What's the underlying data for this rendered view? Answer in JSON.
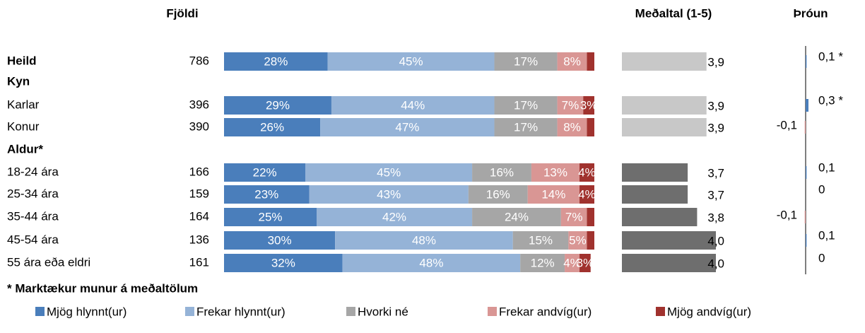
{
  "chart_data": {
    "type": "bar",
    "orientation": "horizontal",
    "stacked": true,
    "count_header": "Fjöldi",
    "categories": [
      "Heild",
      "Kyn",
      "Karlar",
      "Konur",
      "Aldur*",
      "18-24 ára",
      "25-34 ára",
      "35-44 ára",
      "45-54 ára",
      "55 ára eða eldri"
    ],
    "bold_categories": [
      true,
      true,
      false,
      false,
      true,
      false,
      false,
      false,
      false,
      false
    ],
    "counts": [
      786,
      null,
      396,
      390,
      null,
      166,
      159,
      164,
      136,
      161
    ],
    "xlim": [
      0,
      100
    ],
    "series": [
      {
        "name": "Mjög hlynnt(ur)",
        "color": "#4a7ebb",
        "values": [
          28,
          null,
          29,
          26,
          null,
          22,
          23,
          25,
          30,
          32
        ],
        "value_labels": [
          "28%",
          null,
          "29%",
          "26%",
          null,
          "22%",
          "23%",
          "25%",
          "30%",
          "32%"
        ]
      },
      {
        "name": "Frekar hlynnt(ur)",
        "color": "#95b3d7",
        "values": [
          45,
          null,
          44,
          47,
          null,
          45,
          43,
          42,
          48,
          48
        ],
        "value_labels": [
          "45%",
          null,
          "44%",
          "47%",
          null,
          "45%",
          "43%",
          "42%",
          "48%",
          "48%"
        ]
      },
      {
        "name": "Hvorki né",
        "color": "#a6a6a6",
        "values": [
          17,
          null,
          17,
          17,
          null,
          16,
          16,
          24,
          15,
          12
        ],
        "value_labels": [
          "17%",
          null,
          "17%",
          "17%",
          null,
          "16%",
          "16%",
          "24%",
          "15%",
          "12%"
        ]
      },
      {
        "name": "Frekar andvíg(ur)",
        "color": "#d99694",
        "values": [
          8,
          null,
          7,
          8,
          null,
          13,
          14,
          7,
          5,
          4
        ],
        "value_labels": [
          "8%",
          null,
          "7%",
          "8%",
          null,
          "13%",
          "14%",
          "7%",
          "5%",
          "4%"
        ]
      },
      {
        "name": "Mjög andvíg(ur)",
        "color": "#a0322e",
        "values": [
          2,
          null,
          3,
          2,
          null,
          4,
          4,
          2,
          2,
          3
        ],
        "value_labels": [
          null,
          null,
          "3%",
          null,
          null,
          "4%",
          "4%",
          null,
          null,
          "3%"
        ]
      }
    ],
    "mean": {
      "title": "Meðaltal (1-5)",
      "xlim": [
        3,
        4
      ],
      "values": [
        3.9,
        null,
        3.9,
        3.9,
        null,
        3.7,
        3.7,
        3.8,
        4.0,
        4.0
      ],
      "value_labels": [
        "3,9",
        null,
        "3,9",
        "3,9",
        null,
        "3,7",
        "3,7",
        "3,8",
        "4,0",
        "4,0"
      ],
      "colors": [
        "#c8c8c8",
        null,
        "#c8c8c8",
        "#c8c8c8",
        null,
        "#6e6e6e",
        "#6e6e6e",
        "#6e6e6e",
        "#6e6e6e",
        "#6e6e6e"
      ]
    },
    "trend": {
      "title": "Þróun",
      "xlim": [
        -3,
        3
      ],
      "values": [
        0.1,
        null,
        0.3,
        -0.1,
        null,
        0.1,
        0,
        -0.1,
        0.1,
        0
      ],
      "value_labels": [
        "0,1 *",
        null,
        "0,3 *",
        "-0,1",
        null,
        "0,1",
        "0",
        "-0,1",
        "0,1",
        "0"
      ],
      "positive_color": "#4a7ebb",
      "negative_color": "#d99694"
    },
    "footnote": "* Marktækur munur á meðaltölum",
    "legend": "bottom"
  }
}
